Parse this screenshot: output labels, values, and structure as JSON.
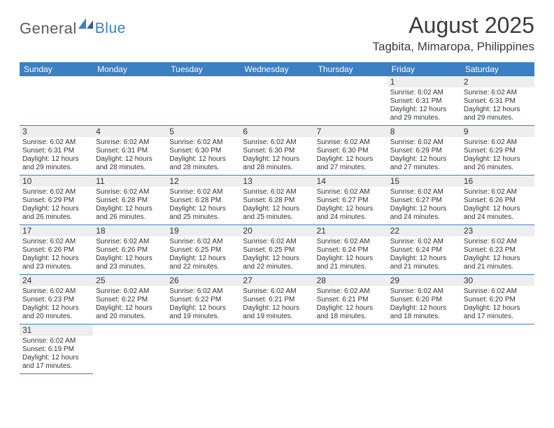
{
  "brand": {
    "general": "General",
    "blue": "Blue"
  },
  "title": {
    "month": "August 2025",
    "location": "Tagbita, Mimaropa, Philippines"
  },
  "colors": {
    "header_bg": "#3b7fc4",
    "header_text": "#ffffff",
    "daynum_bg": "#eeeeee",
    "cell_border": "#3b7fc4",
    "body_text": "#333333",
    "title_text": "#3b3b3b",
    "logo_gray": "#5c5c5c",
    "logo_blue": "#3b7fc4"
  },
  "weekdays": [
    "Sunday",
    "Monday",
    "Tuesday",
    "Wednesday",
    "Thursday",
    "Friday",
    "Saturday"
  ],
  "first_weekday_index": 5,
  "days": [
    {
      "n": 1,
      "sunrise": "6:02 AM",
      "sunset": "6:31 PM",
      "daylight": "12 hours and 29 minutes."
    },
    {
      "n": 2,
      "sunrise": "6:02 AM",
      "sunset": "6:31 PM",
      "daylight": "12 hours and 29 minutes."
    },
    {
      "n": 3,
      "sunrise": "6:02 AM",
      "sunset": "6:31 PM",
      "daylight": "12 hours and 29 minutes."
    },
    {
      "n": 4,
      "sunrise": "6:02 AM",
      "sunset": "6:31 PM",
      "daylight": "12 hours and 28 minutes."
    },
    {
      "n": 5,
      "sunrise": "6:02 AM",
      "sunset": "6:30 PM",
      "daylight": "12 hours and 28 minutes."
    },
    {
      "n": 6,
      "sunrise": "6:02 AM",
      "sunset": "6:30 PM",
      "daylight": "12 hours and 28 minutes."
    },
    {
      "n": 7,
      "sunrise": "6:02 AM",
      "sunset": "6:30 PM",
      "daylight": "12 hours and 27 minutes."
    },
    {
      "n": 8,
      "sunrise": "6:02 AM",
      "sunset": "6:29 PM",
      "daylight": "12 hours and 27 minutes."
    },
    {
      "n": 9,
      "sunrise": "6:02 AM",
      "sunset": "6:29 PM",
      "daylight": "12 hours and 26 minutes."
    },
    {
      "n": 10,
      "sunrise": "6:02 AM",
      "sunset": "6:29 PM",
      "daylight": "12 hours and 26 minutes."
    },
    {
      "n": 11,
      "sunrise": "6:02 AM",
      "sunset": "6:28 PM",
      "daylight": "12 hours and 26 minutes."
    },
    {
      "n": 12,
      "sunrise": "6:02 AM",
      "sunset": "6:28 PM",
      "daylight": "12 hours and 25 minutes."
    },
    {
      "n": 13,
      "sunrise": "6:02 AM",
      "sunset": "6:28 PM",
      "daylight": "12 hours and 25 minutes."
    },
    {
      "n": 14,
      "sunrise": "6:02 AM",
      "sunset": "6:27 PM",
      "daylight": "12 hours and 24 minutes."
    },
    {
      "n": 15,
      "sunrise": "6:02 AM",
      "sunset": "6:27 PM",
      "daylight": "12 hours and 24 minutes."
    },
    {
      "n": 16,
      "sunrise": "6:02 AM",
      "sunset": "6:26 PM",
      "daylight": "12 hours and 24 minutes."
    },
    {
      "n": 17,
      "sunrise": "6:02 AM",
      "sunset": "6:26 PM",
      "daylight": "12 hours and 23 minutes."
    },
    {
      "n": 18,
      "sunrise": "6:02 AM",
      "sunset": "6:26 PM",
      "daylight": "12 hours and 23 minutes."
    },
    {
      "n": 19,
      "sunrise": "6:02 AM",
      "sunset": "6:25 PM",
      "daylight": "12 hours and 22 minutes."
    },
    {
      "n": 20,
      "sunrise": "6:02 AM",
      "sunset": "6:25 PM",
      "daylight": "12 hours and 22 minutes."
    },
    {
      "n": 21,
      "sunrise": "6:02 AM",
      "sunset": "6:24 PM",
      "daylight": "12 hours and 21 minutes."
    },
    {
      "n": 22,
      "sunrise": "6:02 AM",
      "sunset": "6:24 PM",
      "daylight": "12 hours and 21 minutes."
    },
    {
      "n": 23,
      "sunrise": "6:02 AM",
      "sunset": "6:23 PM",
      "daylight": "12 hours and 21 minutes."
    },
    {
      "n": 24,
      "sunrise": "6:02 AM",
      "sunset": "6:23 PM",
      "daylight": "12 hours and 20 minutes."
    },
    {
      "n": 25,
      "sunrise": "6:02 AM",
      "sunset": "6:22 PM",
      "daylight": "12 hours and 20 minutes."
    },
    {
      "n": 26,
      "sunrise": "6:02 AM",
      "sunset": "6:22 PM",
      "daylight": "12 hours and 19 minutes."
    },
    {
      "n": 27,
      "sunrise": "6:02 AM",
      "sunset": "6:21 PM",
      "daylight": "12 hours and 19 minutes."
    },
    {
      "n": 28,
      "sunrise": "6:02 AM",
      "sunset": "6:21 PM",
      "daylight": "12 hours and 18 minutes."
    },
    {
      "n": 29,
      "sunrise": "6:02 AM",
      "sunset": "6:20 PM",
      "daylight": "12 hours and 18 minutes."
    },
    {
      "n": 30,
      "sunrise": "6:02 AM",
      "sunset": "6:20 PM",
      "daylight": "12 hours and 17 minutes."
    },
    {
      "n": 31,
      "sunrise": "6:02 AM",
      "sunset": "6:19 PM",
      "daylight": "12 hours and 17 minutes."
    }
  ],
  "labels": {
    "sunrise": "Sunrise: ",
    "sunset": "Sunset: ",
    "daylight": "Daylight: "
  }
}
